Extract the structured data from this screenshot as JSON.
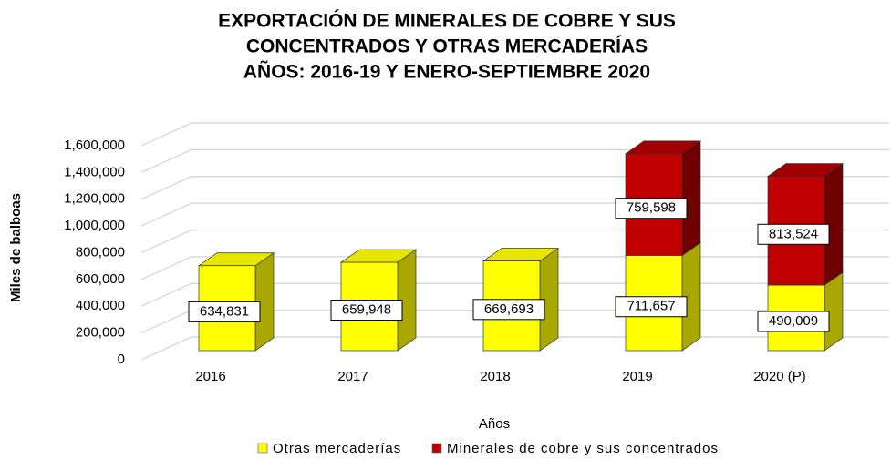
{
  "chart_data": {
    "type": "bar3d_stacked",
    "title": [
      "EXPORTACIÓN DE MINERALES DE COBRE Y SUS",
      "CONCENTRADOS Y OTRAS MERCADERÍAS",
      "AÑOS: 2016-19 Y ENERO-SEPTIEMBRE 2020"
    ],
    "x_label": "Años",
    "y_label": "Miles de balboas",
    "categories": [
      "2016",
      "2017",
      "2018",
      "2019",
      "2020 (P)"
    ],
    "series": [
      {
        "name": "Otras mercaderías",
        "color": "#ffff00",
        "side_color": "#a8a800",
        "top_color": "#e6e600",
        "values": [
          634831,
          659948,
          669693,
          711657,
          490009
        ],
        "value_labels": [
          "634,831",
          "659,948",
          "669,693",
          "711,657",
          "490,009"
        ]
      },
      {
        "name": "Minerales de cobre y sus concentrados",
        "color": "#c00000",
        "side_color": "#700000",
        "top_color": "#a00000",
        "values": [
          null,
          null,
          null,
          759598,
          813524
        ],
        "value_labels": [
          null,
          null,
          null,
          "759,598",
          "813,524"
        ]
      }
    ],
    "ylim": [
      0,
      1600000
    ],
    "yticks": [
      0,
      {
        "value": 200000,
        "label": "200,000"
      },
      {
        "value": 400000,
        "label": "400,000"
      },
      {
        "value": 600000,
        "label": "600,000"
      },
      {
        "value": 800000,
        "label": "800,000"
      },
      {
        "value": 1000000,
        "label": "1,000,000"
      },
      {
        "value": 1200000,
        "label": "1,200,000"
      },
      {
        "value": 1400000,
        "label": "1,400,000"
      },
      {
        "value": 1600000,
        "label": "1,600,000"
      }
    ],
    "grid": true
  }
}
